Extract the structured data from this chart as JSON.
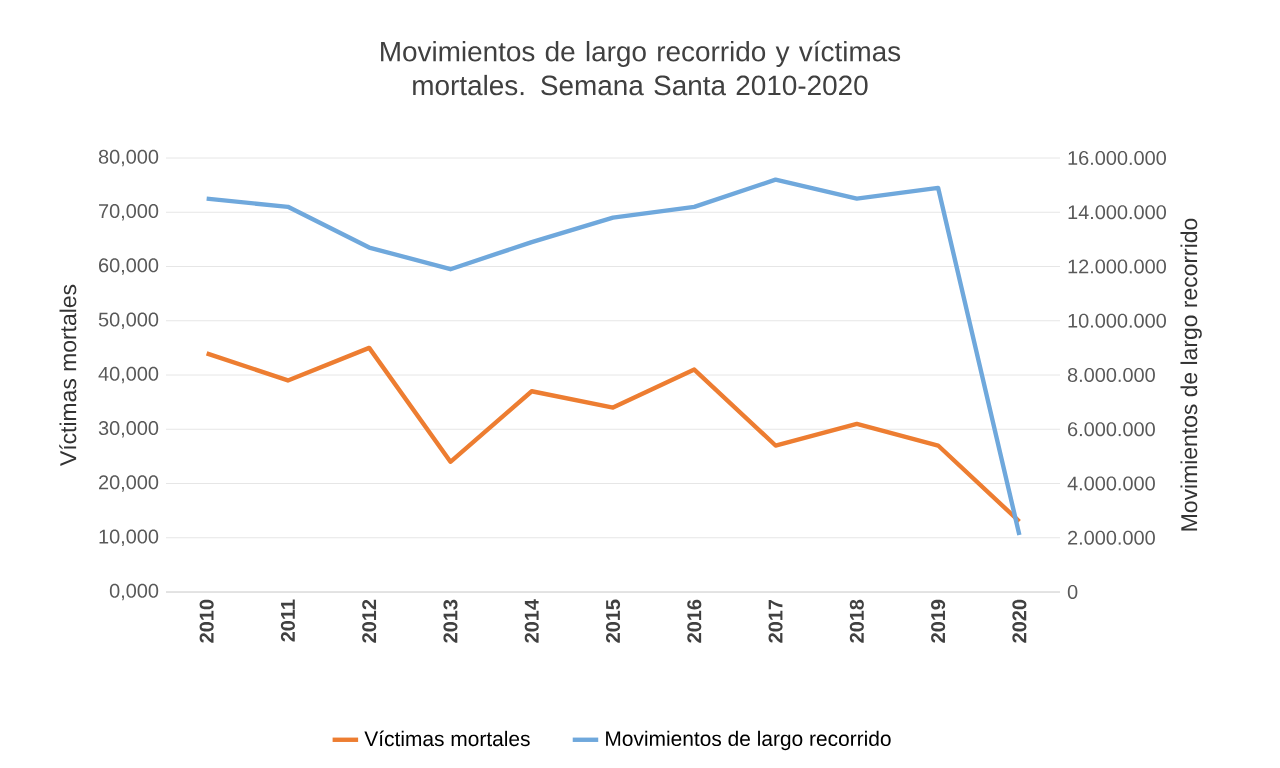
{
  "chart_data": {
    "type": "line",
    "title": "Movimientos de largo recorrido y víctimas mortales. Semana Santa 2010-2020",
    "ylabel": "Víctimas mortales",
    "y2label": "Movimientos de largo recorrido",
    "categories": [
      "2010",
      "2011",
      "2012",
      "2013",
      "2014",
      "2015",
      "2016",
      "2017",
      "2018",
      "2019",
      "2020"
    ],
    "series": [
      {
        "name": "Víctimas mortales",
        "color": "#ed7d31",
        "values": [
          44,
          39,
          45,
          24,
          37,
          34,
          41,
          27,
          31,
          27,
          13
        ]
      },
      {
        "name": "Movimientos de largo recorrido",
        "color": "#6fa8dc",
        "axis": "y2",
        "values": [
          14500000,
          14200000,
          12700000,
          11900000,
          12900000,
          13800000,
          14200000,
          15200000,
          14500000,
          14900000,
          2100000
        ]
      }
    ],
    "ylim": [
      0,
      80
    ],
    "yticks": [
      {
        "value": 0,
        "label": "0,000"
      },
      {
        "value": 10,
        "label": "10,000"
      },
      {
        "value": 20,
        "label": "20,000"
      },
      {
        "value": 30,
        "label": "30,000"
      },
      {
        "value": 40,
        "label": "40,000"
      },
      {
        "value": 50,
        "label": "50,000"
      },
      {
        "value": 60,
        "label": "60,000"
      },
      {
        "value": 70,
        "label": "70,000"
      },
      {
        "value": 80,
        "label": "80,000"
      }
    ],
    "y2lim": [
      0,
      16000000
    ],
    "y2ticks": [
      0,
      {
        "value": 2000000,
        "label": "2.000.000"
      },
      {
        "value": 4000000,
        "label": "4.000.000"
      },
      {
        "value": 6000000,
        "label": "6.000.000"
      },
      {
        "value": 8000000,
        "label": "8.000.000"
      },
      {
        "value": 10000000,
        "label": "10.000.000"
      },
      {
        "value": 12000000,
        "label": "12.000.000"
      },
      {
        "value": 14000000,
        "label": "14.000.000"
      },
      {
        "value": 16000000,
        "label": "16.000.000"
      }
    ],
    "grid": "y",
    "legend": "bottom",
    "marker": "none",
    "line_style": "solid"
  }
}
